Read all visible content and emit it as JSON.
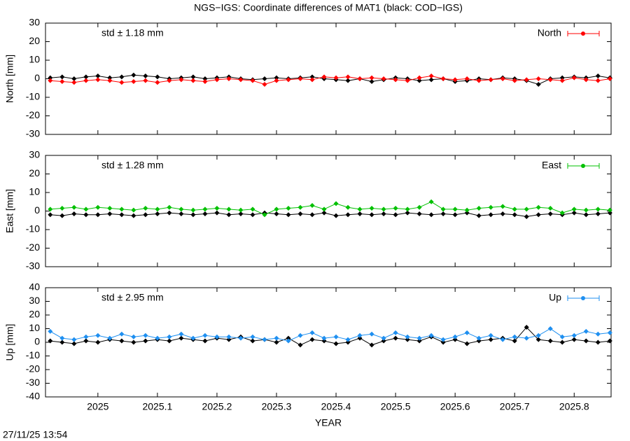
{
  "title": "NGS−IGS: Coordinate differences of MAT1 (black: COD−IGS)",
  "timestamp": "27/11/25 13:54",
  "chart_data": [
    {
      "type": "line",
      "ylabel": "North [mm]",
      "annotation": "std ± 1.18 mm",
      "xlim": [
        2024.912,
        2025.862
      ],
      "xticks": [
        2025,
        2025.1,
        2025.2,
        2025.3,
        2025.4,
        2025.5,
        2025.6,
        2025.7,
        2025.8
      ],
      "ylim": [
        -30,
        30
      ],
      "yticks": [
        -30,
        -20,
        -10,
        0,
        10,
        20,
        30
      ],
      "legend": "upper right",
      "x": [
        2024.92,
        2024.94,
        2024.96,
        2024.98,
        2025.0,
        2025.02,
        2025.04,
        2025.06,
        2025.08,
        2025.1,
        2025.12,
        2025.14,
        2025.16,
        2025.18,
        2025.2,
        2025.22,
        2025.24,
        2025.26,
        2025.28,
        2025.3,
        2025.32,
        2025.34,
        2025.36,
        2025.38,
        2025.4,
        2025.42,
        2025.44,
        2025.46,
        2025.48,
        2025.5,
        2025.52,
        2025.54,
        2025.56,
        2025.58,
        2025.6,
        2025.62,
        2025.64,
        2025.66,
        2025.68,
        2025.7,
        2025.72,
        2025.74,
        2025.76,
        2025.78,
        2025.8,
        2025.82,
        2025.84,
        2025.86
      ],
      "series": [
        {
          "color": "#000000",
          "values": [
            0.5,
            1,
            0,
            1,
            1.5,
            0.5,
            1,
            2,
            1.5,
            1,
            0,
            0.5,
            1,
            0,
            0.5,
            1,
            0,
            -0.5,
            0,
            0.5,
            0,
            0.5,
            1,
            0,
            -0.5,
            -1,
            0,
            -1.5,
            -0.5,
            0.5,
            0,
            -1,
            -0.5,
            0,
            -1.5,
            -1,
            0,
            -0.5,
            0.5,
            0,
            -1,
            -3,
            0,
            0.5,
            1,
            0.5,
            1.5,
            0.5
          ]
        },
        {
          "name": "North",
          "color": "#ff0000",
          "values": [
            -1,
            -1.5,
            -2,
            -1,
            -0.5,
            -1,
            -2,
            -1.5,
            -1,
            -2,
            -1,
            -0.5,
            -1,
            -1.5,
            -0.5,
            0,
            -0.5,
            -1,
            -3,
            -1,
            -0.5,
            0,
            -0.5,
            1,
            0.5,
            1,
            0,
            0.5,
            0,
            -0.5,
            -1,
            0.5,
            1.5,
            0,
            -0.5,
            0,
            -1,
            -0.5,
            0,
            -1,
            -0.5,
            0,
            -0.5,
            -1,
            0.5,
            -0.5,
            -1,
            0
          ]
        }
      ]
    },
    {
      "type": "line",
      "ylabel": "East [mm]",
      "annotation": "std ± 1.28 mm",
      "xlim": [
        2024.912,
        2025.862
      ],
      "xticks": [
        2025,
        2025.1,
        2025.2,
        2025.3,
        2025.4,
        2025.5,
        2025.6,
        2025.7,
        2025.8
      ],
      "ylim": [
        -30,
        30
      ],
      "yticks": [
        -30,
        -20,
        -10,
        0,
        10,
        20,
        30
      ],
      "legend": "upper right",
      "x": [
        2024.92,
        2024.94,
        2024.96,
        2024.98,
        2025.0,
        2025.02,
        2025.04,
        2025.06,
        2025.08,
        2025.1,
        2025.12,
        2025.14,
        2025.16,
        2025.18,
        2025.2,
        2025.22,
        2025.24,
        2025.26,
        2025.28,
        2025.3,
        2025.32,
        2025.34,
        2025.36,
        2025.38,
        2025.4,
        2025.42,
        2025.44,
        2025.46,
        2025.48,
        2025.5,
        2025.52,
        2025.54,
        2025.56,
        2025.58,
        2025.6,
        2025.62,
        2025.64,
        2025.66,
        2025.68,
        2025.7,
        2025.72,
        2025.74,
        2025.76,
        2025.78,
        2025.8,
        2025.82,
        2025.84,
        2025.86
      ],
      "series": [
        {
          "color": "#000000",
          "values": [
            -2,
            -2.5,
            -1.5,
            -2,
            -2,
            -1.5,
            -2,
            -2.5,
            -2,
            -1.5,
            -1,
            -1.5,
            -2,
            -1.5,
            -1,
            -2,
            -1.5,
            -2,
            -1,
            -1.5,
            -2,
            -1.5,
            -2,
            -1,
            -2.5,
            -2,
            -1.5,
            -2,
            -1.5,
            -2,
            -1,
            -1.5,
            -2,
            -1.5,
            -2,
            -1,
            -2.5,
            -2,
            -1.5,
            -2,
            -3,
            -2,
            -1.5,
            -2,
            -1,
            -2,
            -1.5,
            -1
          ]
        },
        {
          "name": "East",
          "color": "#00c000",
          "values": [
            1,
            1.5,
            2,
            1,
            2,
            1.5,
            1,
            0.5,
            1.5,
            1,
            2,
            1,
            0.5,
            1,
            1.5,
            1,
            0.5,
            1,
            -2,
            1,
            1.5,
            2,
            3,
            1,
            4,
            2,
            1,
            1.5,
            1,
            1.5,
            1,
            2,
            5,
            1,
            1,
            0.5,
            1.5,
            2,
            2.5,
            1,
            1,
            2,
            1.5,
            -1,
            1,
            0.5,
            1,
            0.5
          ]
        }
      ]
    },
    {
      "type": "line",
      "ylabel": "Up [mm]",
      "annotation": "std ± 2.95 mm",
      "xlabel": "YEAR",
      "xlim": [
        2024.912,
        2025.862
      ],
      "xticks": [
        2025,
        2025.1,
        2025.2,
        2025.3,
        2025.4,
        2025.5,
        2025.6,
        2025.7,
        2025.8
      ],
      "ylim": [
        -40,
        40
      ],
      "yticks": [
        -40,
        -30,
        -20,
        -10,
        0,
        10,
        20,
        30,
        40
      ],
      "legend": "upper right",
      "x": [
        2024.92,
        2024.94,
        2024.96,
        2024.98,
        2025.0,
        2025.02,
        2025.04,
        2025.06,
        2025.08,
        2025.1,
        2025.12,
        2025.14,
        2025.16,
        2025.18,
        2025.2,
        2025.22,
        2025.24,
        2025.26,
        2025.28,
        2025.3,
        2025.32,
        2025.34,
        2025.36,
        2025.38,
        2025.4,
        2025.42,
        2025.44,
        2025.46,
        2025.48,
        2025.5,
        2025.52,
        2025.54,
        2025.56,
        2025.58,
        2025.6,
        2025.62,
        2025.64,
        2025.66,
        2025.68,
        2025.7,
        2025.72,
        2025.74,
        2025.76,
        2025.78,
        2025.8,
        2025.82,
        2025.84,
        2025.86
      ],
      "series": [
        {
          "color": "#000000",
          "values": [
            1,
            0,
            -1,
            1,
            0,
            2,
            1,
            0,
            1,
            2,
            1,
            3,
            2,
            1,
            3,
            2,
            4,
            1,
            2,
            0,
            3,
            -2,
            2,
            1,
            -1,
            0,
            3,
            -2,
            1,
            3,
            2,
            1,
            4,
            0,
            2,
            -1,
            1,
            2,
            3,
            1,
            11,
            2,
            1,
            0,
            2,
            1,
            0,
            1
          ]
        },
        {
          "name": "Up",
          "color": "#1e8ff0",
          "values": [
            8,
            3,
            2,
            4,
            5,
            3,
            6,
            4,
            5,
            3,
            4,
            6,
            3,
            5,
            4,
            4,
            3,
            4,
            2,
            3,
            1,
            5,
            7,
            3,
            4,
            2,
            5,
            6,
            3,
            7,
            4,
            3,
            5,
            2,
            4,
            7,
            3,
            5,
            2,
            4,
            3,
            5,
            10,
            4,
            5,
            8,
            6,
            7
          ]
        }
      ]
    }
  ]
}
